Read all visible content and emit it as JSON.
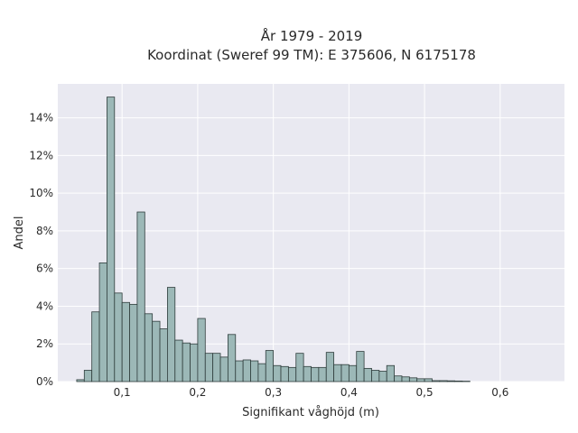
{
  "chart_data": {
    "type": "bar",
    "title_lines": [
      "År 1979 - 2019",
      "Koordinat (Sweref 99 TM): E 375606, N 6175178"
    ],
    "xlabel": "Signifikant våghöjd (m)",
    "ylabel": "Andel",
    "x_tick_values": [
      0.1,
      0.2,
      0.3,
      0.4,
      0.5,
      0.6
    ],
    "x_tick_labels": [
      "0,1",
      "0,2",
      "0,3",
      "0,4",
      "0,5",
      "0,6"
    ],
    "y_tick_values": [
      0,
      2,
      4,
      6,
      8,
      10,
      12,
      14
    ],
    "y_tick_labels": [
      "0%",
      "2%",
      "4%",
      "6%",
      "8%",
      "10%",
      "12%",
      "14%"
    ],
    "xlim": [
      0.015,
      0.685
    ],
    "ylim": [
      0,
      15.8
    ],
    "grid": true,
    "bin_width": 0.01,
    "bin_starts": [
      0.04,
      0.05,
      0.06,
      0.07,
      0.08,
      0.09,
      0.1,
      0.11,
      0.12,
      0.13,
      0.14,
      0.15,
      0.16,
      0.17,
      0.18,
      0.19,
      0.2,
      0.21,
      0.22,
      0.23,
      0.24,
      0.25,
      0.26,
      0.27,
      0.28,
      0.29,
      0.3,
      0.31,
      0.32,
      0.33,
      0.34,
      0.35,
      0.36,
      0.37,
      0.38,
      0.39,
      0.4,
      0.41,
      0.42,
      0.43,
      0.44,
      0.45,
      0.46,
      0.47,
      0.48,
      0.49,
      0.5,
      0.51,
      0.52,
      0.53,
      0.54,
      0.55,
      0.56,
      0.57,
      0.58,
      0.59,
      0.6,
      0.61,
      0.62,
      0.63,
      0.64,
      0.65
    ],
    "values": [
      0.1,
      0.6,
      3.7,
      6.3,
      15.1,
      4.7,
      4.2,
      4.1,
      9.0,
      3.6,
      3.2,
      2.8,
      5.0,
      2.2,
      2.05,
      2.0,
      3.35,
      1.5,
      1.5,
      1.3,
      2.5,
      1.1,
      1.15,
      1.1,
      0.95,
      1.65,
      0.85,
      0.8,
      0.75,
      1.5,
      0.8,
      0.75,
      0.75,
      1.55,
      0.9,
      0.9,
      0.85,
      1.6,
      0.7,
      0.6,
      0.55,
      0.85,
      0.3,
      0.25,
      0.2,
      0.15,
      0.15,
      0.05,
      0.05,
      0.04,
      0.03,
      0.02,
      0,
      0,
      0,
      0,
      0,
      0,
      0,
      0,
      0,
      0
    ],
    "colors": {
      "bar_fill": "#9cb8b7",
      "bar_edge": "#2f3d3c",
      "plot_bg": "#e9e9f1",
      "grid": "#ffffff"
    }
  }
}
